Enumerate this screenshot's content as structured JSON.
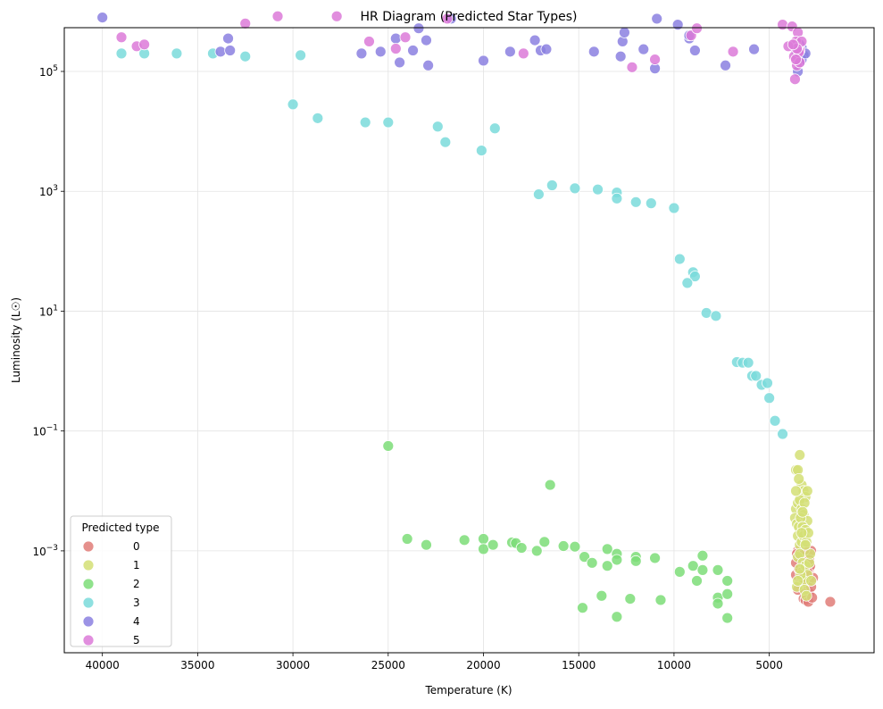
{
  "chart_data": {
    "type": "scatter",
    "title": "HR Diagram (Predicted Star Types)",
    "xlabel": "Temperature (K)",
    "ylabel": "Luminosity (L☉)",
    "x_inverted": true,
    "xlim": [
      42000,
      -500
    ],
    "y_scale": "log",
    "ylim_log10": [
      -4.7,
      5.73
    ],
    "grid": true,
    "legend_title": "Predicted type",
    "legend_position": "lower-left",
    "x_ticks": [
      {
        "value": 40000,
        "label": "40000"
      },
      {
        "value": 35000,
        "label": "35000"
      },
      {
        "value": 30000,
        "label": "30000"
      },
      {
        "value": 25000,
        "label": "25000"
      },
      {
        "value": 20000,
        "label": "20000"
      },
      {
        "value": 15000,
        "label": "15000"
      },
      {
        "value": 10000,
        "label": "10000"
      },
      {
        "value": 5000,
        "label": "5000"
      }
    ],
    "y_ticks": [
      {
        "exp": 5,
        "base": "10",
        "power": "5"
      },
      {
        "exp": 3,
        "base": "10",
        "power": "3"
      },
      {
        "exp": 1,
        "base": "10",
        "power": "1"
      },
      {
        "exp": -1,
        "base": "10",
        "power": "−1"
      },
      {
        "exp": -3,
        "base": "10",
        "power": "−3"
      }
    ],
    "series": [
      {
        "name": "0",
        "color": "#e07c78",
        "points": [
          [
            3500,
            -3.0
          ],
          [
            3400,
            -3.15
          ],
          [
            3300,
            -3.05
          ],
          [
            3200,
            -3.2
          ],
          [
            3100,
            -3.1
          ],
          [
            3000,
            -3.05
          ],
          [
            2900,
            -3.3
          ],
          [
            2800,
            -3.0
          ],
          [
            3600,
            -3.4
          ],
          [
            3450,
            -3.3
          ],
          [
            3250,
            -3.35
          ],
          [
            3050,
            -3.45
          ],
          [
            2950,
            -3.5
          ],
          [
            2850,
            -3.25
          ],
          [
            3350,
            -3.6
          ],
          [
            3150,
            -3.7
          ],
          [
            3000,
            -3.55
          ],
          [
            2900,
            -3.7
          ],
          [
            2800,
            -3.6
          ],
          [
            2700,
            -3.45
          ],
          [
            3600,
            -3.2
          ],
          [
            3400,
            -3.55
          ],
          [
            3500,
            -3.65
          ],
          [
            3200,
            -3.8
          ],
          [
            3100,
            -3.82
          ],
          [
            2950,
            -3.85
          ],
          [
            2750,
            -3.78
          ],
          [
            3300,
            -3.45
          ],
          [
            3550,
            -3.05
          ],
          [
            3000,
            -3.35
          ],
          [
            2900,
            -3.15
          ],
          [
            3150,
            -2.98
          ],
          [
            1800,
            -3.85
          ]
        ]
      },
      {
        "name": "1",
        "color": "#d3df76",
        "points": [
          [
            3400,
            -1.4
          ],
          [
            3600,
            -1.65
          ],
          [
            3500,
            -1.65
          ],
          [
            3300,
            -1.9
          ],
          [
            3200,
            -2.0
          ],
          [
            3100,
            -2.1
          ],
          [
            3600,
            -2.3
          ],
          [
            3500,
            -2.2
          ],
          [
            3400,
            -2.15
          ],
          [
            3300,
            -2.3
          ],
          [
            3200,
            -2.4
          ],
          [
            3000,
            -2.5
          ],
          [
            3650,
            -2.45
          ],
          [
            3550,
            -2.55
          ],
          [
            3450,
            -2.6
          ],
          [
            3350,
            -2.45
          ],
          [
            3250,
            -2.6
          ],
          [
            3100,
            -2.65
          ],
          [
            3500,
            -2.75
          ],
          [
            3400,
            -2.9
          ],
          [
            3300,
            -2.85
          ],
          [
            3200,
            -2.75
          ],
          [
            3050,
            -2.85
          ],
          [
            2950,
            -2.7
          ],
          [
            3500,
            -3.1
          ],
          [
            3400,
            -3.05
          ],
          [
            3250,
            -3.2
          ],
          [
            3100,
            -3.25
          ],
          [
            2900,
            -3.2
          ],
          [
            3000,
            -3.4
          ],
          [
            3200,
            -3.5
          ],
          [
            3350,
            -3.4
          ],
          [
            3550,
            -3.6
          ],
          [
            3150,
            -3.65
          ],
          [
            3050,
            -3.75
          ],
          [
            2800,
            -3.5
          ],
          [
            3450,
            -1.8
          ],
          [
            3150,
            -2.2
          ],
          [
            3000,
            -2.0
          ],
          [
            3300,
            -2.7
          ],
          [
            2850,
            -3.05
          ],
          [
            3600,
            -2.0
          ],
          [
            3500,
            -3.5
          ],
          [
            3100,
            -2.9
          ],
          [
            3250,
            -2.35
          ],
          [
            3400,
            -3.3
          ]
        ]
      },
      {
        "name": "2",
        "color": "#7cdd78",
        "points": [
          [
            25000,
            -1.25
          ],
          [
            16500,
            -1.9
          ],
          [
            24000,
            -2.8
          ],
          [
            23000,
            -2.9
          ],
          [
            21000,
            -2.82
          ],
          [
            20000,
            -2.8
          ],
          [
            20000,
            -2.97
          ],
          [
            19500,
            -2.9
          ],
          [
            18500,
            -2.86
          ],
          [
            18300,
            -2.87
          ],
          [
            18000,
            -2.95
          ],
          [
            17200,
            -3.0
          ],
          [
            16800,
            -2.85
          ],
          [
            15800,
            -2.92
          ],
          [
            15200,
            -2.93
          ],
          [
            14700,
            -3.1
          ],
          [
            14300,
            -3.2
          ],
          [
            13500,
            -2.97
          ],
          [
            13500,
            -3.25
          ],
          [
            13000,
            -3.05
          ],
          [
            13000,
            -3.15
          ],
          [
            12000,
            -3.1
          ],
          [
            12000,
            -3.17
          ],
          [
            11000,
            -3.12
          ],
          [
            9700,
            -3.35
          ],
          [
            9000,
            -3.25
          ],
          [
            8800,
            -3.5
          ],
          [
            8500,
            -3.08
          ],
          [
            8500,
            -3.32
          ],
          [
            7700,
            -3.32
          ],
          [
            7200,
            -3.5
          ],
          [
            7700,
            -3.78
          ],
          [
            7700,
            -3.88
          ],
          [
            7200,
            -3.72
          ],
          [
            7200,
            -4.12
          ],
          [
            13800,
            -3.75
          ],
          [
            14800,
            -3.95
          ],
          [
            12300,
            -3.8
          ],
          [
            10700,
            -3.82
          ],
          [
            13000,
            -4.1
          ]
        ]
      },
      {
        "name": "3",
        "color": "#7adada",
        "points": [
          [
            39000,
            5.3
          ],
          [
            37800,
            5.3
          ],
          [
            36100,
            5.3
          ],
          [
            34200,
            5.3
          ],
          [
            32500,
            5.25
          ],
          [
            29600,
            5.27
          ],
          [
            30000,
            4.45
          ],
          [
            28700,
            4.22
          ],
          [
            26200,
            4.15
          ],
          [
            25000,
            4.15
          ],
          [
            22400,
            4.08
          ],
          [
            22000,
            3.82
          ],
          [
            20100,
            3.68
          ],
          [
            19400,
            4.05
          ],
          [
            16400,
            3.1
          ],
          [
            15200,
            3.05
          ],
          [
            14000,
            3.03
          ],
          [
            13000,
            2.98
          ],
          [
            17100,
            2.95
          ],
          [
            13000,
            2.88
          ],
          [
            12000,
            2.82
          ],
          [
            11200,
            2.8
          ],
          [
            10000,
            2.72
          ],
          [
            9700,
            1.87
          ],
          [
            9000,
            1.65
          ],
          [
            8900,
            1.58
          ],
          [
            9300,
            1.47
          ],
          [
            8300,
            0.97
          ],
          [
            7800,
            0.92
          ],
          [
            6700,
            0.15
          ],
          [
            6400,
            0.14
          ],
          [
            6100,
            0.14
          ],
          [
            5900,
            -0.08
          ],
          [
            5700,
            -0.08
          ],
          [
            5400,
            -0.23
          ],
          [
            5100,
            -0.2
          ],
          [
            5000,
            -0.45
          ],
          [
            4700,
            -0.83
          ],
          [
            4300,
            -1.05
          ]
        ]
      },
      {
        "name": "4",
        "color": "#8b80e0",
        "points": [
          [
            40000,
            5.9
          ],
          [
            33800,
            5.33
          ],
          [
            33400,
            5.55
          ],
          [
            33300,
            5.35
          ],
          [
            26400,
            5.3
          ],
          [
            25400,
            5.33
          ],
          [
            24600,
            5.55
          ],
          [
            24400,
            5.15
          ],
          [
            23700,
            5.35
          ],
          [
            23400,
            5.72
          ],
          [
            23000,
            5.52
          ],
          [
            22900,
            5.1
          ],
          [
            21700,
            5.88
          ],
          [
            20000,
            5.18
          ],
          [
            18600,
            5.33
          ],
          [
            17300,
            5.52
          ],
          [
            17000,
            5.35
          ],
          [
            16700,
            5.37
          ],
          [
            14200,
            5.33
          ],
          [
            12800,
            5.25
          ],
          [
            12700,
            5.5
          ],
          [
            12600,
            5.65
          ],
          [
            11600,
            5.37
          ],
          [
            11000,
            5.05
          ],
          [
            10900,
            5.88
          ],
          [
            9800,
            5.78
          ],
          [
            9200,
            5.55
          ],
          [
            9200,
            5.6
          ],
          [
            8900,
            5.35
          ],
          [
            7300,
            5.1
          ],
          [
            5800,
            5.37
          ],
          [
            3300,
            5.4
          ],
          [
            3500,
            5.3
          ],
          [
            3200,
            5.27
          ],
          [
            3400,
            5.45
          ],
          [
            3600,
            5.35
          ],
          [
            3300,
            5.2
          ],
          [
            3500,
            5.0
          ],
          [
            3400,
            5.15
          ],
          [
            3100,
            5.3
          ]
        ]
      },
      {
        "name": "5",
        "color": "#dc7ad8",
        "points": [
          [
            39000,
            5.57
          ],
          [
            38200,
            5.42
          ],
          [
            37800,
            5.45
          ],
          [
            32500,
            5.8
          ],
          [
            30800,
            5.92
          ],
          [
            27700,
            5.92
          ],
          [
            26000,
            5.5
          ],
          [
            24600,
            5.38
          ],
          [
            24100,
            5.57
          ],
          [
            21900,
            5.88
          ],
          [
            17900,
            5.3
          ],
          [
            12200,
            5.07
          ],
          [
            11000,
            5.2
          ],
          [
            9100,
            5.6
          ],
          [
            8800,
            5.72
          ],
          [
            6900,
            5.33
          ],
          [
            4300,
            5.78
          ],
          [
            3800,
            5.75
          ],
          [
            3500,
            5.65
          ],
          [
            3600,
            5.5
          ],
          [
            3400,
            5.35
          ],
          [
            3700,
            5.25
          ],
          [
            3550,
            5.1
          ],
          [
            3650,
            4.87
          ],
          [
            3500,
            5.4
          ],
          [
            3450,
            5.32
          ],
          [
            3300,
            5.5
          ],
          [
            3550,
            5.38
          ],
          [
            3400,
            5.15
          ],
          [
            3600,
            5.2
          ],
          [
            4000,
            5.42
          ],
          [
            3750,
            5.45
          ]
        ]
      }
    ]
  }
}
